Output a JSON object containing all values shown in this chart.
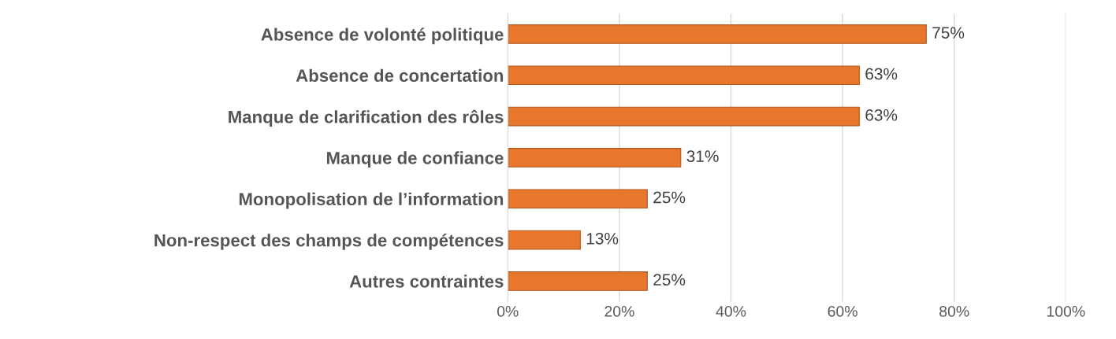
{
  "chart_data": {
    "type": "bar",
    "orientation": "horizontal",
    "categories": [
      "Absence de volonté politique",
      "Absence de concertation",
      "Manque de clarification des rôles",
      "Manque de confiance",
      "Monopolisation de l’information",
      "Non-respect des champs de compétences",
      "Autres contraintes"
    ],
    "values": [
      75,
      63,
      63,
      31,
      25,
      13,
      25
    ],
    "color": "#e8772e",
    "value_labels": [
      "75%",
      "63%",
      "63%",
      "31%",
      "25%",
      "13%",
      "25%"
    ],
    "xlim": [
      0,
      100
    ],
    "xticks": [
      {
        "value": 0,
        "label": "0%"
      },
      {
        "value": 20,
        "label": "20%"
      },
      {
        "value": 40,
        "label": "40%"
      },
      {
        "value": 60,
        "label": "60%"
      },
      {
        "value": 80,
        "label": "80%"
      },
      {
        "value": 100,
        "label": "100%"
      }
    ],
    "grid": "x"
  }
}
